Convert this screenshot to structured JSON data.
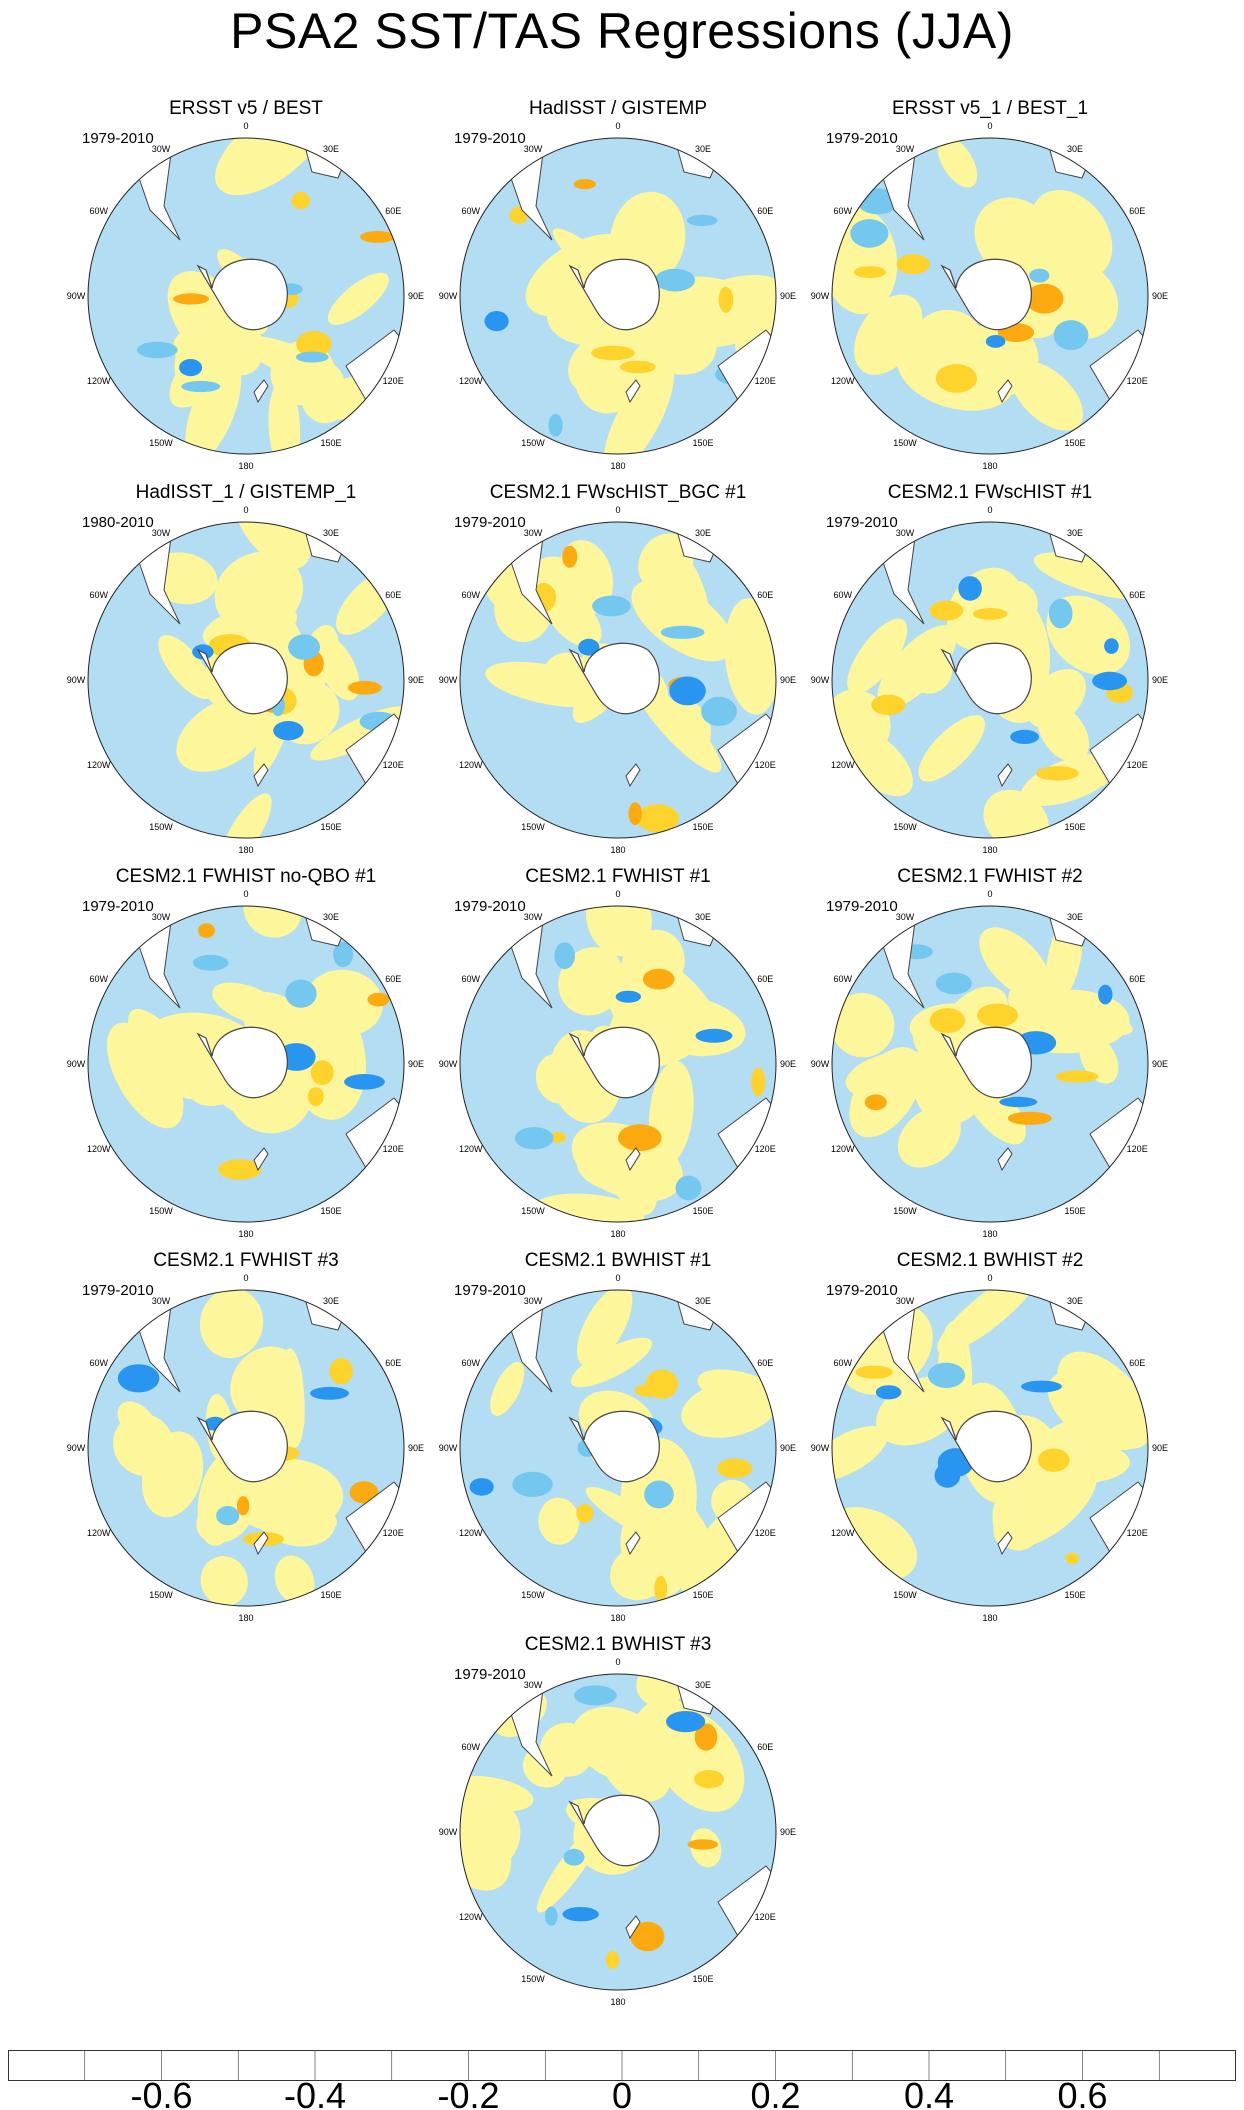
{
  "title": "PSA2 SST/TAS Regressions (JJA)",
  "chart_data": {
    "type": "polar-stereographic-contour-maps",
    "variable": "SST/TAS regression onto PSA2 pattern",
    "season": "JJA",
    "projection": "South Polar Stereographic",
    "longitude_labels": [
      "0",
      "30E",
      "60E",
      "90E",
      "120E",
      "150E",
      "180",
      "150W",
      "120W",
      "90W",
      "60W",
      "30W"
    ],
    "panels": [
      {
        "title": "ERSST v5 / BEST",
        "period": "1979-2010"
      },
      {
        "title": "HadISST / GISTEMP",
        "period": "1979-2010"
      },
      {
        "title": "ERSST v5_1 / BEST_1",
        "period": "1979-2010"
      },
      {
        "title": "HadISST_1 / GISTEMP_1",
        "period": "1980-2010"
      },
      {
        "title": "CESM2.1 FWscHIST_BGC #1",
        "period": "1979-2010"
      },
      {
        "title": "CESM2.1 FWscHIST #1",
        "period": "1979-2010"
      },
      {
        "title": "CESM2.1 FWHIST no-QBO #1",
        "period": "1979-2010"
      },
      {
        "title": "CESM2.1 FWHIST #1",
        "period": "1979-2010"
      },
      {
        "title": "CESM2.1 FWHIST #2",
        "period": "1979-2010"
      },
      {
        "title": "CESM2.1 FWHIST #3",
        "period": "1979-2010"
      },
      {
        "title": "CESM2.1 BWHIST #1",
        "period": "1979-2010"
      },
      {
        "title": "CESM2.1 BWHIST #2",
        "period": "1979-2010"
      },
      {
        "title": "CESM2.1 BWHIST #3",
        "period": "1979-2010"
      }
    ],
    "colorbar": {
      "levels": [
        -0.7,
        -0.6,
        -0.5,
        -0.4,
        -0.3,
        -0.2,
        -0.1,
        0,
        0.1,
        0.2,
        0.3,
        0.4,
        0.5,
        0.6,
        0.7
      ],
      "tick_labels": [
        "-0.6",
        "-0.4",
        "-0.2",
        "0",
        "0.2",
        "0.4",
        "0.6"
      ],
      "colors": [
        "#8a1ef0",
        "#1a1aff",
        "#2e4bea",
        "#3d7de8",
        "#2896f0",
        "#00bfff",
        "#74c8f0",
        "#b3ddf2",
        "#fef69a",
        "#fdd32c",
        "#fdaa10",
        "#fd7a00",
        "#fd3c00",
        "#ee0000",
        "#cc1c1c",
        "#fcb4b4"
      ]
    }
  }
}
